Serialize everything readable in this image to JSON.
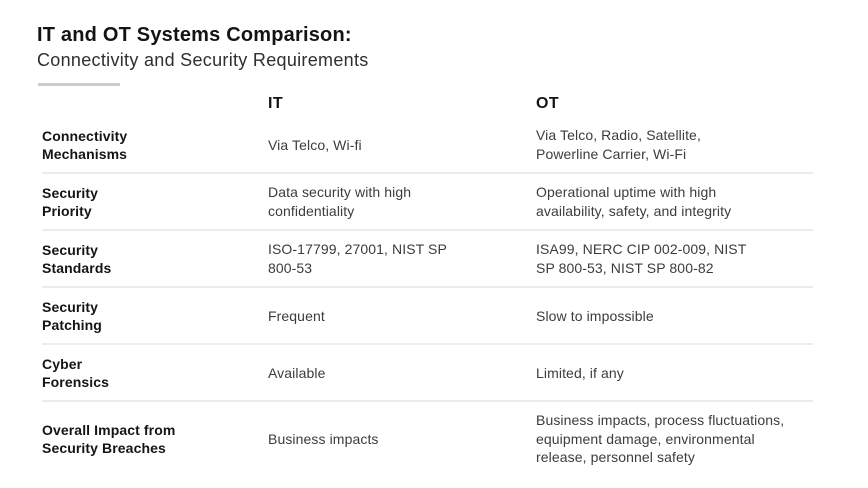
{
  "header": {
    "title": "IT and OT Systems Comparison:",
    "subtitle": "Connectivity and Security Requirements"
  },
  "table": {
    "col_headers": {
      "it": "IT",
      "ot": "OT"
    },
    "rows": [
      {
        "label": "Connectivity\nMechanisms",
        "it": "Via Telco, Wi-fi",
        "ot": "Via Telco, Radio, Satellite,\nPowerline Carrier, Wi-Fi"
      },
      {
        "label": "Security\nPriority",
        "it": "Data security with high\nconfidentiality",
        "ot": "Operational uptime with high\navailability, safety, and integrity"
      },
      {
        "label": "Security\nStandards",
        "it": "ISO-17799, 27001, NIST SP\n800-53",
        "ot": "ISA99, NERC CIP 002-009, NIST\nSP 800-53, NIST SP 800-82"
      },
      {
        "label": "Security\nPatching",
        "it": "Frequent",
        "ot": "Slow to impossible"
      },
      {
        "label": "Cyber\nForensics",
        "it": "Available",
        "ot": "Limited, if any"
      },
      {
        "label": "Overall Impact from\nSecurity Breaches",
        "it": "Business impacts",
        "ot": "Business impacts, process fluctuations,\nequipment damage, environmental\nrelease, personnel safety"
      }
    ]
  },
  "colors": {
    "background": "#ffffff",
    "title_text": "#141414",
    "subtitle_text": "#2f2f2f",
    "label_text": "#141414",
    "cell_text": "#3c3c3c",
    "divider": "#ececec",
    "accent_bar": "#cccccc"
  }
}
